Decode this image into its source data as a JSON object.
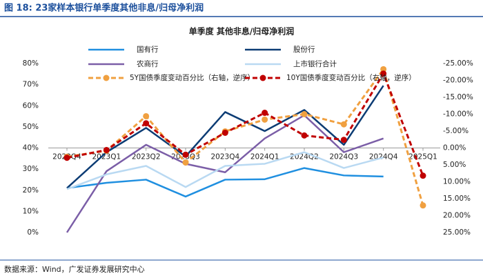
{
  "header": "图 18: 23家样本银行单季度其他非息/归母净利润",
  "source": "数据来源：Wind，广发证券发展研究中心",
  "chart_data": {
    "type": "line",
    "title": "单季度 其他非息/归母净利润",
    "categories": [
      "2022Q4",
      "2023Q1",
      "2023Q2",
      "2023Q3",
      "2023Q4",
      "2024Q1",
      "2024Q2",
      "2024Q3",
      "2024Q4",
      "2025Q1"
    ],
    "series": [
      {
        "name": "国有行",
        "color": "#1f8fe0",
        "values": [
          21,
          23.5,
          25,
          17,
          25,
          25.2,
          30.5,
          27,
          26.5,
          null
        ]
      },
      {
        "name": "股份行",
        "color": "#0c3c74",
        "values": [
          21,
          38,
          49.5,
          36,
          57,
          48,
          58,
          41.5,
          69.5,
          null
        ]
      },
      {
        "name": "农商行",
        "color": "#7b5ea7",
        "values": [
          0,
          29,
          41.5,
          32.5,
          28.5,
          44.5,
          55.5,
          38,
          44.5,
          null
        ]
      },
      {
        "name": "上市银行合计",
        "color": "#b9d9f2",
        "values": [
          20.5,
          27.5,
          31.5,
          21.5,
          31.5,
          32.5,
          38,
          30.5,
          35.5,
          null
        ]
      },
      {
        "name": "5Y国债季度变动百分比（右轴，逆序）",
        "color": "#f0a040",
        "axis": "y2",
        "dashed": true,
        "values": [
          2.6,
          0.8,
          -9.4,
          4.3,
          -4.9,
          -8.4,
          -10,
          -7,
          -23.3,
          17
        ]
      },
      {
        "name": "10Y国债季度变动百分比（右轴，逆序）",
        "color": "#c00000",
        "axis": "y2",
        "dashed": true,
        "values": [
          2.9,
          0.6,
          -7.3,
          2,
          -4.5,
          -10.4,
          -3.7,
          -2.4,
          -22,
          8.2
        ]
      }
    ],
    "ylim": [
      0,
      80
    ],
    "yticks": [
      {
        "value": 0,
        "label": "0%"
      },
      {
        "value": 10,
        "label": "10%"
      },
      {
        "value": 20,
        "label": "20%"
      },
      {
        "value": 30,
        "label": "30%"
      },
      {
        "value": 40,
        "label": "40%"
      },
      {
        "value": 50,
        "label": "50%"
      },
      {
        "value": 60,
        "label": "60%"
      },
      {
        "value": 70,
        "label": "70%"
      },
      {
        "value": 80,
        "label": "80%"
      }
    ],
    "y2lim": [
      25,
      -25
    ],
    "y2ticks": [
      {
        "value": 25,
        "label": "25.00%"
      },
      {
        "value": 20,
        "label": "20.00%"
      },
      {
        "value": 15,
        "label": "15.00%"
      },
      {
        "value": 10,
        "label": "10.00%"
      },
      {
        "value": 5,
        "label": "5.00%"
      },
      {
        "value": 0,
        "label": "0.00%"
      },
      {
        "value": -5,
        "label": "-5.00%"
      },
      {
        "value": -10,
        "label": "-10.00%"
      },
      {
        "value": -15,
        "label": "-15.00%"
      },
      {
        "value": -20,
        "label": "-20.00%"
      },
      {
        "value": -25,
        "label": "-25.00%"
      }
    ],
    "grid": false
  }
}
